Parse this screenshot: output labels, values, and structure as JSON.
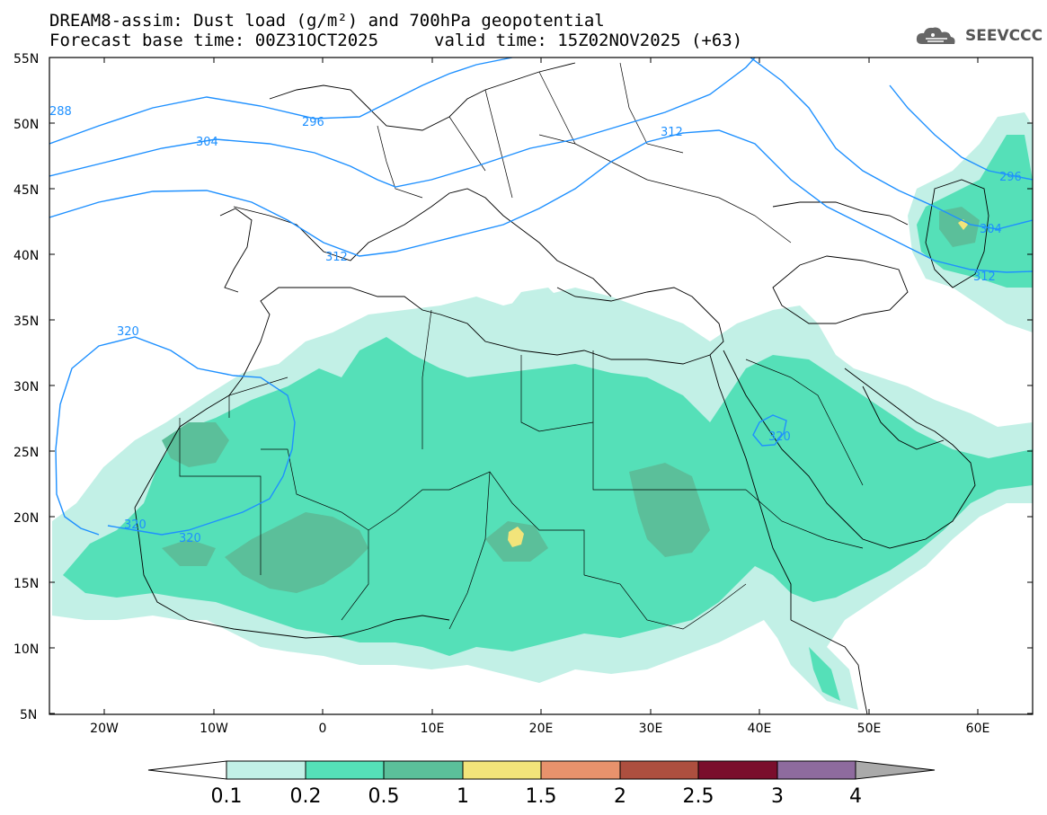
{
  "header": {
    "line1": "DREAM8-assim: Dust load (g/m²) and 700hPa geopotential",
    "line2_left": "Forecast base time: 00Z31OCT2025",
    "line2_right": "valid time: 15Z02NOV2025 (+63)",
    "logo_text": "SEEVCCC",
    "logo_icon": "cloud-icon"
  },
  "map": {
    "lat_labels": [
      "55N",
      "50N",
      "45N",
      "40N",
      "35N",
      "30N",
      "25N",
      "20N",
      "15N",
      "10N",
      "5N"
    ],
    "lon_labels": [
      "20W",
      "10W",
      "0",
      "10E",
      "20E",
      "30E",
      "40E",
      "50E",
      "60E"
    ],
    "contour_labels": [
      "288",
      "296",
      "304",
      "312",
      "312",
      "320",
      "320",
      "320",
      "320",
      "296",
      "304",
      "312"
    ]
  },
  "colorbar": {
    "levels": [
      "0.1",
      "0.2",
      "0.5",
      "1",
      "1.5",
      "2",
      "2.5",
      "3",
      "4"
    ],
    "colors": [
      "#ffffff",
      "#c2f0e6",
      "#55e0b8",
      "#5bbf9a",
      "#f2e47a",
      "#e8926c",
      "#ad4f3f",
      "#7a0e2c",
      "#8e6b9e",
      "#aaaaaa"
    ]
  }
}
